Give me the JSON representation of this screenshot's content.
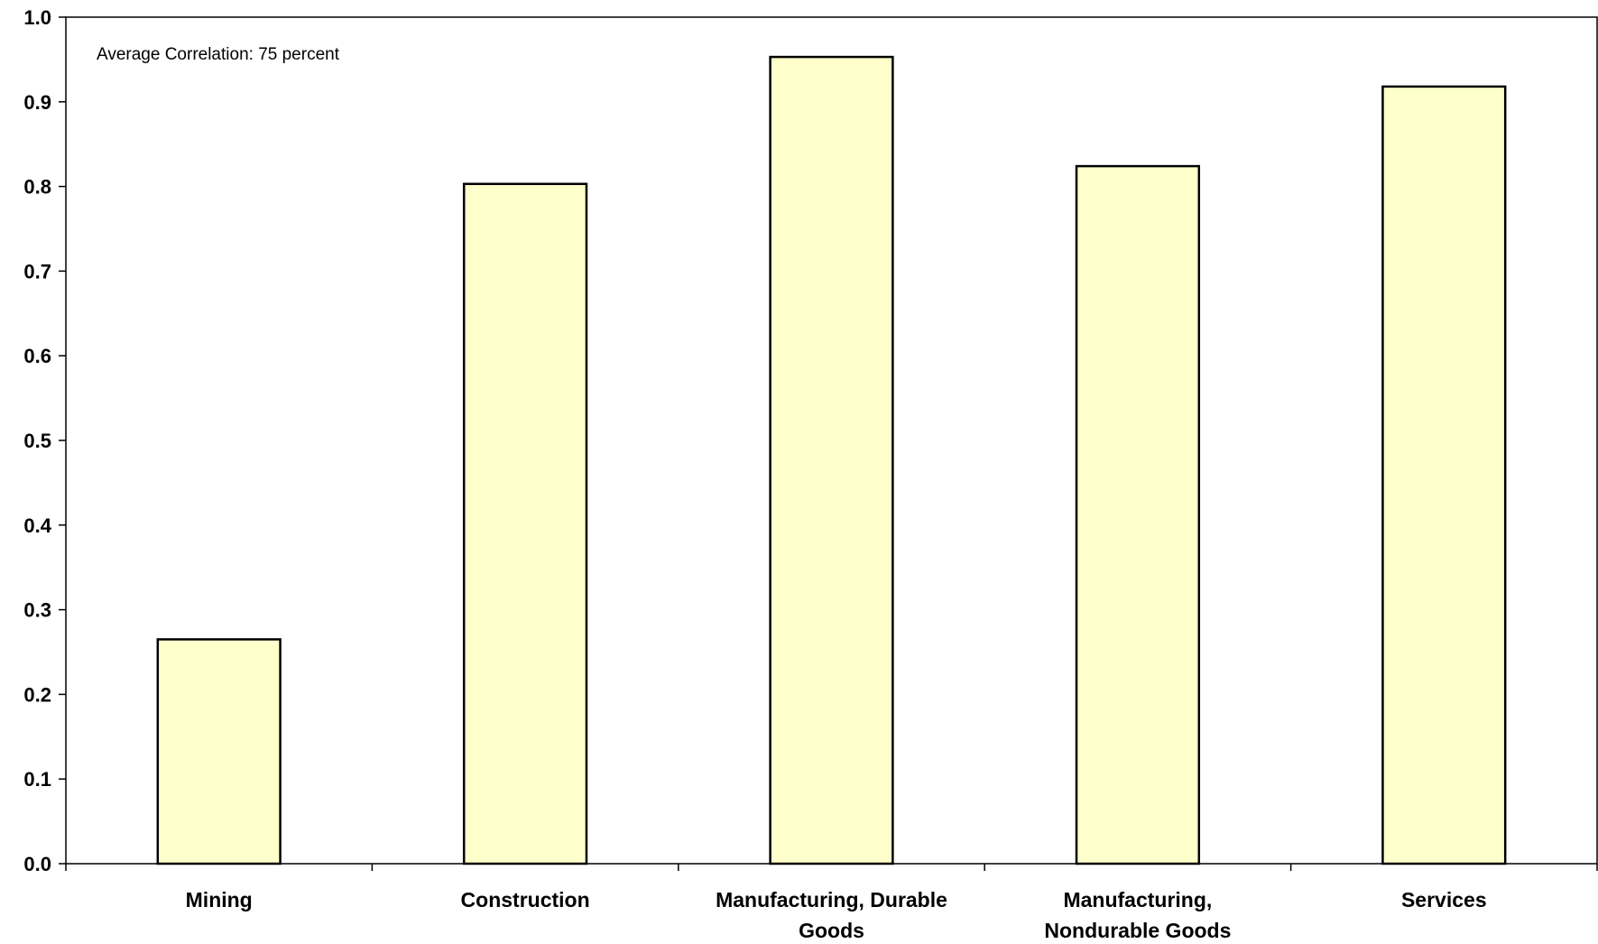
{
  "chart_data": {
    "type": "bar",
    "categories": [
      [
        "Mining"
      ],
      [
        "Construction"
      ],
      [
        "Manufacturing, Durable",
        "Goods"
      ],
      [
        "Manufacturing,",
        "Nondurable Goods"
      ],
      [
        "Services"
      ]
    ],
    "values": [
      0.265,
      0.803,
      0.953,
      0.824,
      0.918
    ],
    "ylim": [
      0.0,
      1.0
    ],
    "yticks": [
      "0.0",
      "0.1",
      "0.2",
      "0.3",
      "0.4",
      "0.5",
      "0.6",
      "0.7",
      "0.8",
      "0.9",
      "1.0"
    ],
    "annotation": "Average Correlation: 75 percent",
    "grid": false,
    "bar_fill": "#ffffcc",
    "bar_stroke": "#000000"
  }
}
